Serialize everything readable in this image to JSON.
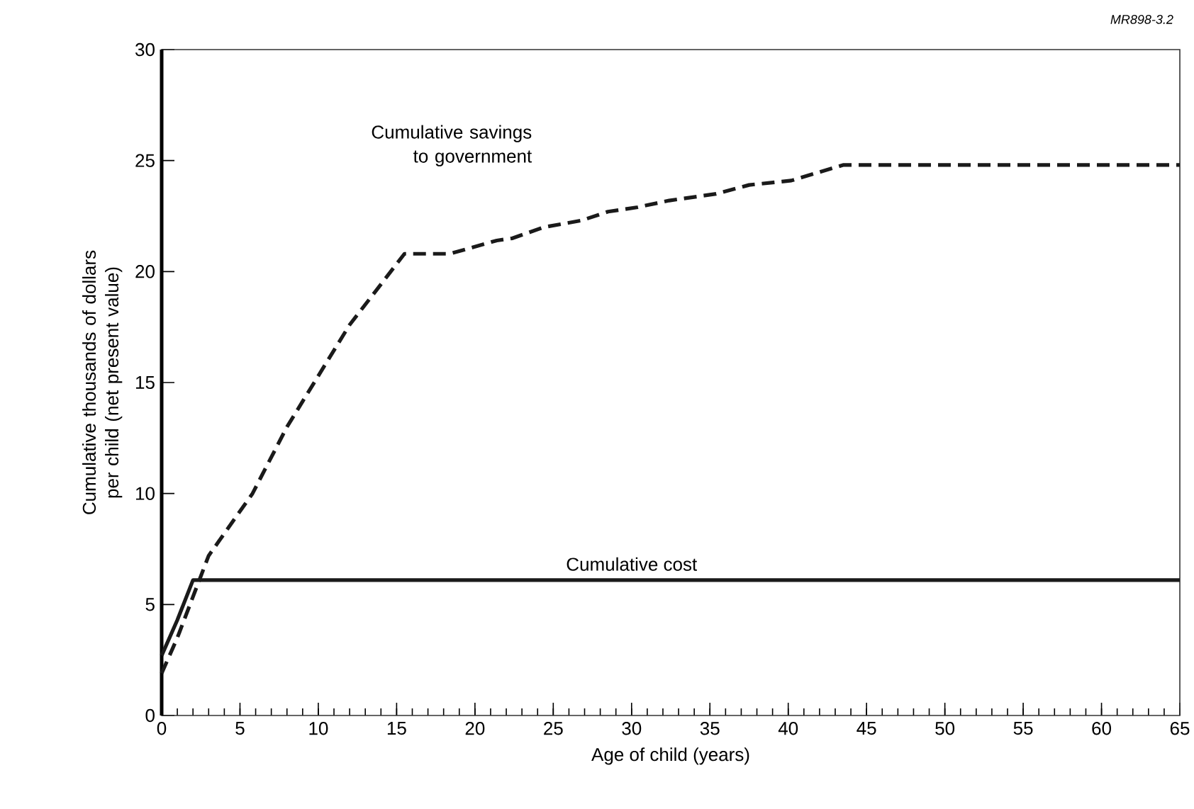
{
  "chart_data": {
    "type": "line",
    "xlabel": "Age of child (years)",
    "ylabel": "Cumulative thousands of dollars per child (net present value)",
    "xlim": [
      0,
      65
    ],
    "ylim": [
      0,
      30
    ],
    "xticks": [
      0,
      5,
      10,
      15,
      20,
      25,
      30,
      35,
      40,
      45,
      50,
      55,
      60,
      65
    ],
    "yticks": [
      0,
      5,
      10,
      15,
      20,
      25,
      30
    ],
    "grid": false,
    "marker": "none",
    "series": [
      {
        "color": "#1a1a1a",
        "line_style": "dashed",
        "x": [
          0,
          1,
          3,
          5.8,
          8,
          12,
          15.5,
          18.4,
          21.4,
          22.4,
          24.4,
          26.8,
          28.5,
          30.4,
          32.4,
          35.4,
          37.5,
          40.2,
          43.5,
          65
        ],
        "values": [
          1.9,
          3.5,
          7.2,
          10,
          13.0,
          17.6,
          20.8,
          20.8,
          21.4,
          21.5,
          22.0,
          22.3,
          22.7,
          22.9,
          23.2,
          23.5,
          23.9,
          24.1,
          24.8,
          24.8
        ]
      },
      {
        "color": "#1a1a1a",
        "line_style": "solid",
        "x": [
          0,
          1,
          2,
          65
        ],
        "values": [
          2.7,
          4.3,
          6.1,
          6.1
        ]
      }
    ],
    "annotations": [
      "Cumulative savings to government",
      {
        "text": "Cumulative cost",
        "x": 30,
        "y": 6.1
      },
      "MR898-3.2"
    ]
  }
}
